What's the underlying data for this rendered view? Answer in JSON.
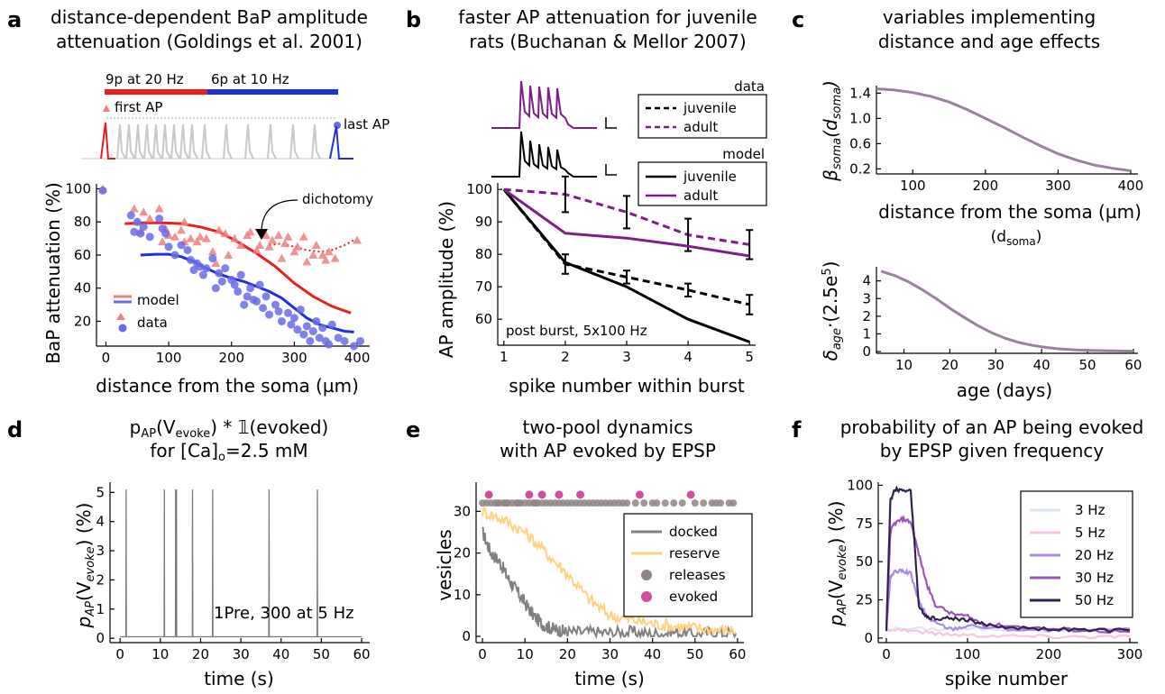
{
  "panels": {
    "a": {
      "label": "a",
      "title1": "distance-dependent BaP amplitude",
      "title2": "attenuation (Goldings et al. 2001)",
      "train_red_label": "9p at 20 Hz",
      "train_blue_label": "6p at 10 Hz",
      "first_ap": "first AP",
      "last_ap": "last AP",
      "dichotomy": "dichotomy",
      "legend_model": "model",
      "legend_data": "data"
    },
    "b": {
      "label": "b",
      "title1": "faster AP attenuation for juvenile",
      "title2": "rats (Buchanan & Mellor 2007)",
      "legend_data_head": "data",
      "legend_model_head": "model",
      "juvenile": "juvenile",
      "adult": "adult",
      "annotation": "post burst, 5x100 Hz"
    },
    "c": {
      "label": "c",
      "title1": "variables implementing",
      "title2": "distance and age effects",
      "xlabel_top": "distance from the soma (µm)",
      "xlabel_top_sub": "(d",
      "xlabel_top_sub2": "soma",
      "xlabel_top_sub3": ")",
      "ylabel_top": "β",
      "ylabel_top_sub": "soma",
      "ylabel_top_paren": "(d",
      "ylabel_top_paren2": "soma",
      "ylabel_top_close": ")",
      "xlabel_bot": "age (days)",
      "ylabel_bot": "δ",
      "ylabel_bot_sub": "age",
      "ylabel_bot_rest": "·(2.5e",
      "ylabel_bot_sup": "5",
      "ylabel_bot_close": ")"
    },
    "d": {
      "label": "d",
      "title1a": "p",
      "title1b": "AP",
      "title1c": "(V",
      "title1d": "evoke",
      "title1e": ") * 𝟙(evoked)",
      "title2a": "for [Ca]",
      "title2b": "o",
      "title2c": "=2.5 mM",
      "annotation": "1Pre, 300 at 5 Hz",
      "xlabel": "time (s)"
    },
    "e": {
      "label": "e",
      "title1": "two-pool dynamics",
      "title2": "with AP evoked by EPSP",
      "xlabel": "time (s)",
      "ylabel": "vesicles",
      "legend": [
        "docked",
        "reserve",
        "releases",
        "evoked"
      ]
    },
    "f": {
      "label": "f",
      "title1": "probability of an AP being evoked",
      "title2": "by EPSP given frequency",
      "xlabel": "spike number"
    }
  },
  "shared": {
    "pap_ylabel_a": "p",
    "pap_ylabel_b": "AP",
    "pap_ylabel_c": "(V",
    "pap_ylabel_d": "evoke",
    "pap_ylabel_e": ") (%)"
  },
  "colors": {
    "red": "#e8201c",
    "blue": "#1f2fe0",
    "red_marker": "#f08080",
    "blue_marker": "#6b6be6",
    "gray_trace": "#c8c8c8",
    "purple": "#7b1f86",
    "mauve": "#9a829e",
    "docked": "#808080",
    "reserve": "#ffd27f",
    "releases": "#8f8585",
    "evoked": "#cf4f9f",
    "f_3hz": "#dde6f6",
    "f_5hz": "#f8c4e4",
    "f_20hz": "#a98ae6",
    "f_30hz": "#9a55b8",
    "f_50hz": "#33224f"
  },
  "chart_data": [
    {
      "panel": "a",
      "type": "scatter",
      "xlabel": "distance from the soma (µm)",
      "ylabel": "BaP attenuation (%)",
      "xticks": [
        0,
        100,
        200,
        300,
        400
      ],
      "yticks": [
        20,
        40,
        60,
        80,
        100
      ],
      "xlim": [
        -15,
        420
      ],
      "ylim": [
        5,
        103
      ],
      "series": [
        {
          "name": "model",
          "kind": "line",
          "color": "red",
          "x": [
            30,
            60,
            90,
            120,
            150,
            180,
            210,
            240,
            270,
            300,
            330,
            360,
            390
          ],
          "y": [
            79,
            79.5,
            79.5,
            79,
            77,
            74,
            68,
            61,
            53,
            43,
            35,
            29,
            25
          ]
        },
        {
          "name": "",
          "kind": "dotted",
          "color": "red",
          "x": [
            260,
            280,
            300,
            320,
            340,
            360,
            380,
            395
          ],
          "y": [
            66,
            67,
            65,
            63,
            62,
            63,
            66,
            69
          ]
        },
        {
          "name": "",
          "kind": "line",
          "color": "blue",
          "x": [
            55,
            80,
            100,
            120,
            140,
            160,
            180,
            200,
            220,
            240,
            260,
            280,
            300,
            320,
            340,
            360,
            380,
            395
          ],
          "y": [
            60,
            60.5,
            60.5,
            59,
            56,
            52,
            48.5,
            46,
            44,
            41,
            38,
            34,
            28,
            22,
            18,
            16,
            14,
            13.5
          ]
        },
        {
          "name": "data",
          "kind": "triangles",
          "color": "red_marker",
          "x": [
            -5,
            45,
            50,
            55,
            60,
            70,
            85,
            95,
            100,
            110,
            120,
            125,
            135,
            145,
            150,
            160,
            170,
            180,
            190,
            195,
            205,
            215,
            225,
            230,
            240,
            245,
            255,
            260,
            265,
            275,
            280,
            285,
            290,
            300,
            305,
            315,
            320,
            330,
            335,
            345,
            350,
            355,
            365,
            400,
            175,
            125,
            90
          ],
          "y": [
            100,
            88,
            80,
            74,
            86,
            82,
            88,
            76,
            72,
            71,
            75,
            80,
            70,
            68,
            71,
            70,
            62,
            75,
            73,
            60,
            70,
            66,
            72,
            74,
            63,
            66,
            72,
            65,
            69,
            72,
            58,
            67,
            71,
            62,
            65,
            71,
            56,
            60,
            66,
            60,
            57,
            62,
            58,
            69,
            55,
            68,
            68
          ]
        },
        {
          "name": "data",
          "kind": "circles",
          "color": "blue_marker",
          "x": [
            -5,
            40,
            45,
            50,
            55,
            60,
            70,
            85,
            90,
            100,
            110,
            120,
            130,
            135,
            140,
            145,
            155,
            160,
            170,
            180,
            185,
            190,
            200,
            205,
            210,
            215,
            225,
            230,
            235,
            245,
            250,
            255,
            260,
            270,
            275,
            280,
            290,
            295,
            300,
            305,
            310,
            315,
            320,
            325,
            330,
            335,
            340,
            345,
            350,
            355,
            360,
            370,
            380,
            395,
            405,
            240,
            220,
            175,
            150,
            95
          ],
          "y": [
            99,
            84,
            74,
            80,
            73,
            77,
            71,
            82,
            76,
            65,
            60,
            66,
            63,
            57,
            51,
            55,
            48,
            52,
            58,
            49,
            44,
            52,
            45,
            42,
            38,
            48,
            35,
            40,
            33,
            42,
            28,
            35,
            24,
            30,
            26,
            20,
            25,
            18,
            22,
            15,
            27,
            12,
            17,
            8,
            14,
            20,
            10,
            16,
            8,
            6,
            18,
            10,
            8,
            5,
            8,
            32,
            30,
            40,
            53,
            73
          ]
        }
      ]
    },
    {
      "panel": "b",
      "type": "line",
      "xlabel": "spike number within burst",
      "ylabel": "AP amplitude (%)",
      "xticks": [
        1,
        2,
        3,
        4,
        5
      ],
      "yticks": [
        60,
        70,
        80,
        90,
        100
      ],
      "xlim": [
        0.9,
        5.1
      ],
      "ylim": [
        52,
        102
      ],
      "series": [
        {
          "name": "juvenile",
          "group": "data",
          "color": "black",
          "dash": true,
          "x": [
            1,
            2,
            3,
            4,
            5
          ],
          "y": [
            100,
            77,
            73,
            69,
            64.5
          ],
          "err": [
            0,
            3,
            2,
            2,
            3
          ]
        },
        {
          "name": "adult",
          "group": "data",
          "color": "purple",
          "dash": true,
          "x": [
            1,
            2,
            3,
            4,
            5
          ],
          "y": [
            100,
            98.5,
            93,
            86,
            83
          ],
          "err": [
            0,
            5.5,
            5,
            5,
            4.5
          ]
        },
        {
          "name": "juvenile",
          "group": "model",
          "color": "black",
          "dash": false,
          "x": [
            1,
            2,
            3,
            4,
            5
          ],
          "y": [
            100,
            77.5,
            70,
            60,
            53
          ]
        },
        {
          "name": "adult",
          "group": "model",
          "color": "purple",
          "dash": false,
          "x": [
            1,
            2,
            3,
            4,
            5
          ],
          "y": [
            100,
            86.5,
            85,
            82.5,
            79.5
          ]
        }
      ]
    },
    {
      "panel": "c-top",
      "type": "line",
      "xticks": [
        100,
        200,
        300,
        400
      ],
      "yticks": [
        0.2,
        0.6,
        1.0,
        1.4
      ],
      "xlim": [
        50,
        410
      ],
      "ylim": [
        0.12,
        1.52
      ],
      "series": [
        {
          "name": "",
          "color": "mauve",
          "x": [
            50,
            75,
            100,
            125,
            150,
            175,
            200,
            225,
            250,
            275,
            300,
            325,
            350,
            375,
            400
          ],
          "y": [
            1.47,
            1.45,
            1.41,
            1.35,
            1.26,
            1.14,
            1.0,
            0.86,
            0.71,
            0.57,
            0.44,
            0.34,
            0.26,
            0.21,
            0.17
          ]
        }
      ]
    },
    {
      "panel": "c-bottom",
      "type": "line",
      "xticks": [
        10,
        20,
        30,
        40,
        50,
        60
      ],
      "yticks": [
        0,
        1,
        2,
        3,
        4
      ],
      "xlim": [
        4,
        61
      ],
      "ylim": [
        -0.1,
        4.8
      ],
      "series": [
        {
          "name": "",
          "color": "mauve",
          "x": [
            5,
            8,
            11,
            14,
            17,
            20,
            23,
            26,
            29,
            32,
            35,
            38,
            41,
            44,
            47,
            50,
            55,
            60
          ],
          "y": [
            4.55,
            4.3,
            3.95,
            3.5,
            3.0,
            2.45,
            1.95,
            1.48,
            1.08,
            0.76,
            0.52,
            0.35,
            0.23,
            0.15,
            0.1,
            0.07,
            0.04,
            0.02
          ]
        }
      ]
    },
    {
      "panel": "d",
      "type": "line",
      "xticks": [
        0,
        10,
        20,
        30,
        40,
        50,
        60
      ],
      "yticks": [
        0,
        1,
        2,
        3,
        4,
        5
      ],
      "xlim": [
        -2.5,
        62
      ],
      "ylim": [
        -0.15,
        5.35
      ],
      "baseline": 0.05,
      "spikes": [
        1.5,
        11,
        13.8,
        14,
        18,
        23,
        37,
        49
      ],
      "spike_height": 5.1,
      "xmax": 60
    },
    {
      "panel": "e",
      "type": "line",
      "xticks": [
        0,
        10,
        20,
        30,
        40,
        50,
        60
      ],
      "yticks": [
        0,
        10,
        20,
        30
      ],
      "xlim": [
        -1.5,
        61.5
      ],
      "ylim": [
        -1.5,
        37
      ],
      "series": [
        {
          "name": "docked",
          "color": "docked",
          "x": [
            0,
            2,
            4,
            6,
            8,
            10,
            12,
            14,
            16,
            18,
            20,
            25,
            30,
            35,
            40,
            45,
            50,
            55,
            60
          ],
          "y": [
            25,
            20,
            18,
            14,
            11,
            8,
            5,
            3,
            2,
            1.5,
            1,
            1,
            0.8,
            1,
            0.5,
            1,
            0.5,
            1,
            0.5
          ]
        },
        {
          "name": "reserve",
          "color": "reserve",
          "x": [
            0,
            5,
            10,
            15,
            20,
            25,
            30,
            35,
            40,
            45,
            50,
            55,
            60
          ],
          "y": [
            30,
            28,
            25,
            20,
            15,
            9,
            5,
            4,
            3,
            2.5,
            2,
            1.5,
            1.5
          ]
        }
      ],
      "releases_y": 32,
      "releases": [
        0,
        1,
        2,
        3,
        3.5,
        4,
        5,
        5.5,
        6,
        7,
        8,
        8.5,
        9,
        10,
        11,
        12,
        12.5,
        13,
        14,
        15,
        16,
        17,
        18,
        19,
        20,
        21,
        22,
        23,
        24,
        25,
        26,
        27,
        28,
        29,
        30,
        31,
        32,
        33,
        34,
        36,
        38,
        40,
        41,
        43,
        45,
        47,
        50,
        52,
        54,
        55,
        56,
        58,
        59
      ],
      "evoked_y": 34,
      "evoked": [
        1.5,
        11,
        14,
        18,
        23,
        37,
        49
      ]
    },
    {
      "panel": "f",
      "type": "line",
      "xticks": [
        0,
        100,
        200,
        300
      ],
      "yticks": [
        0,
        25,
        50,
        75,
        100
      ],
      "xlim": [
        -10,
        310
      ],
      "ylim": [
        -3,
        102
      ],
      "series": [
        {
          "name": "3 Hz",
          "color": "f_3hz",
          "x": [
            0,
            50,
            100,
            150,
            200,
            250,
            300
          ],
          "y": [
            6,
            6,
            6,
            6,
            5,
            5,
            5
          ]
        },
        {
          "name": "5 Hz",
          "color": "f_5hz",
          "x": [
            0,
            30,
            60,
            100,
            150,
            200,
            250,
            300
          ],
          "y": [
            6,
            5,
            3,
            2,
            1.5,
            1,
            1,
            1
          ]
        },
        {
          "name": "20 Hz",
          "color": "f_20hz",
          "x": [
            0,
            5,
            10,
            20,
            30,
            40,
            50,
            60,
            80,
            100,
            150,
            200,
            250,
            300
          ],
          "y": [
            6,
            40,
            43,
            44,
            42,
            24,
            14,
            10,
            6,
            8,
            6,
            5,
            5,
            6
          ]
        },
        {
          "name": "30 Hz",
          "color": "f_30hz",
          "x": [
            0,
            5,
            10,
            20,
            30,
            40,
            50,
            60,
            80,
            100,
            120,
            150,
            200,
            250,
            300
          ],
          "y": [
            6,
            70,
            75,
            78,
            76,
            55,
            35,
            22,
            16,
            14,
            9,
            8,
            6,
            5,
            4
          ]
        },
        {
          "name": "50 Hz",
          "color": "f_50hz",
          "x": [
            0,
            5,
            10,
            20,
            30,
            35,
            40,
            50,
            60,
            80,
            100,
            120,
            150,
            200,
            250,
            300
          ],
          "y": [
            5,
            90,
            97,
            97,
            96,
            60,
            20,
            14,
            13,
            13,
            12,
            9,
            7,
            6,
            5,
            5
          ]
        }
      ]
    }
  ]
}
